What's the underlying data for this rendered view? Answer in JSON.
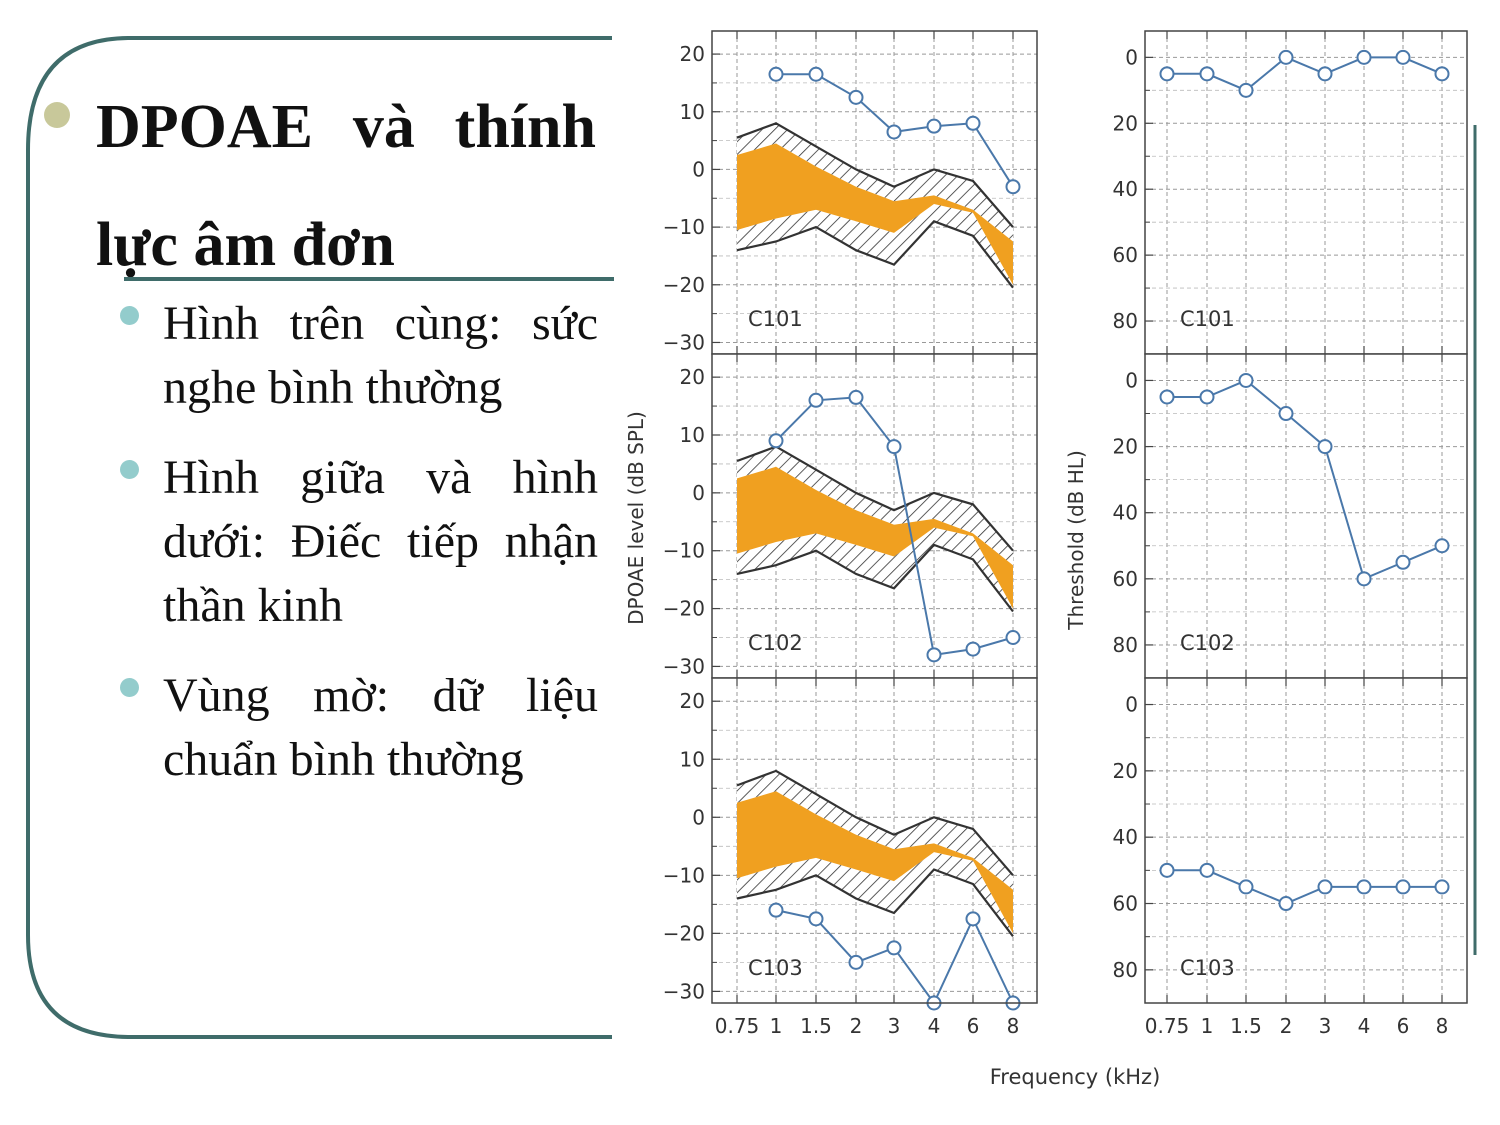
{
  "slide": {
    "title": "DPOAE và thính lực âm đơn",
    "bullets": [
      "Hình trên cùng: sức nghe bình thường",
      "Hình giữa và hình dưới: Điếc tiếp nhận thần kinh",
      "Vùng mờ: dữ liệu chuẩn bình thường"
    ]
  },
  "colors": {
    "accent": "#3f6c6a",
    "series": "#4a78aa",
    "fill": "#f0a020",
    "bullet": "#93cccc",
    "title_bullet": "#c8c89a"
  },
  "chart_data": {
    "type": "line",
    "x_tick_labels": [
      "0.75",
      "1",
      "1.5",
      "2",
      "3",
      "4",
      "6",
      "8"
    ],
    "xlabel": "Frequency (kHz)",
    "dpoae": {
      "ylabel": "DPOAE level (dB SPL)",
      "ylim": [
        -32,
        24
      ],
      "yticks": [
        "20",
        "10",
        "0",
        "−10",
        "−20",
        "−30"
      ],
      "ytick_values": [
        20,
        10,
        0,
        -10,
        -20,
        -30
      ],
      "norms": {
        "hatch_upper": [
          5.5,
          8,
          4,
          0,
          -3,
          0,
          -2,
          -10
        ],
        "orange_upper": [
          2.5,
          4.5,
          0.5,
          -3,
          -5.5,
          -4.5,
          -7,
          -12.5
        ],
        "orange_lower": [
          -10.5,
          -8.5,
          -7,
          -9,
          -11,
          -6,
          -7.5,
          -20
        ],
        "hatch_lower": [
          -14,
          -12.5,
          -10,
          -14,
          -16.5,
          -9,
          -11.5,
          -20.5
        ]
      },
      "panels": [
        {
          "label": "C101",
          "values": [
            16.5,
            16.5,
            12.5,
            6.5,
            7.5,
            8,
            -3
          ]
        },
        {
          "label": "C102",
          "values": [
            9,
            16,
            16.5,
            8,
            -28,
            -27,
            -25
          ]
        },
        {
          "label": "C103",
          "values": [
            -16,
            -17.5,
            -25,
            -22.5,
            -32,
            -17.5,
            -32
          ]
        }
      ]
    },
    "threshold": {
      "ylabel": "Threshold (dB HL)",
      "ylim": [
        -8,
        90
      ],
      "yticks": [
        "0",
        "20",
        "40",
        "60",
        "80"
      ],
      "ytick_values": [
        0,
        20,
        40,
        60,
        80
      ],
      "panels": [
        {
          "label": "C101",
          "values": [
            5,
            5,
            10,
            0,
            5,
            0,
            0,
            5
          ]
        },
        {
          "label": "C102",
          "values": [
            5,
            5,
            0,
            10,
            20,
            60,
            55,
            50
          ]
        },
        {
          "label": "C103",
          "values": [
            50,
            50,
            55,
            60,
            55,
            55,
            55,
            55
          ]
        }
      ]
    }
  }
}
